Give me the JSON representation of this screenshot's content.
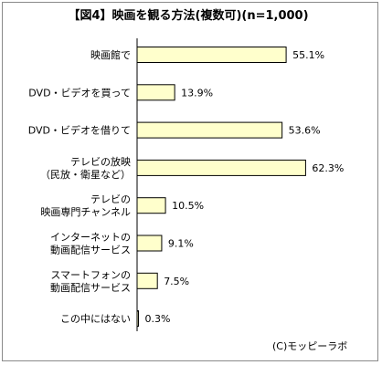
{
  "chart_data": {
    "type": "bar",
    "orientation": "horizontal",
    "title": "【図4】映画を観る方法(複数可)(n=1,000)",
    "categories": [
      [
        "映画館で"
      ],
      [
        "DVD・ビデオを買って"
      ],
      [
        "DVD・ビデオを借りて"
      ],
      [
        "テレビの放映",
        "（民放・衛星など）"
      ],
      [
        "テレビの",
        "映画専門チャンネル"
      ],
      [
        "インターネットの",
        "動画配信サービス"
      ],
      [
        "スマートフォンの",
        "動画配信サービス"
      ],
      [
        "この中にはない"
      ]
    ],
    "values": [
      55.1,
      13.9,
      53.6,
      62.3,
      10.5,
      9.1,
      7.5,
      0.3
    ],
    "value_labels": [
      "55.1%",
      "13.9%",
      "53.6%",
      "62.3%",
      "10.5%",
      "9.1%",
      "7.5%",
      "0.3%"
    ],
    "unit": "%",
    "bar_color": "#ffffcc",
    "bar_border": "#000000",
    "xlim": [
      0,
      70
    ],
    "grid": false,
    "credit": "(C)モッピーラボ"
  }
}
